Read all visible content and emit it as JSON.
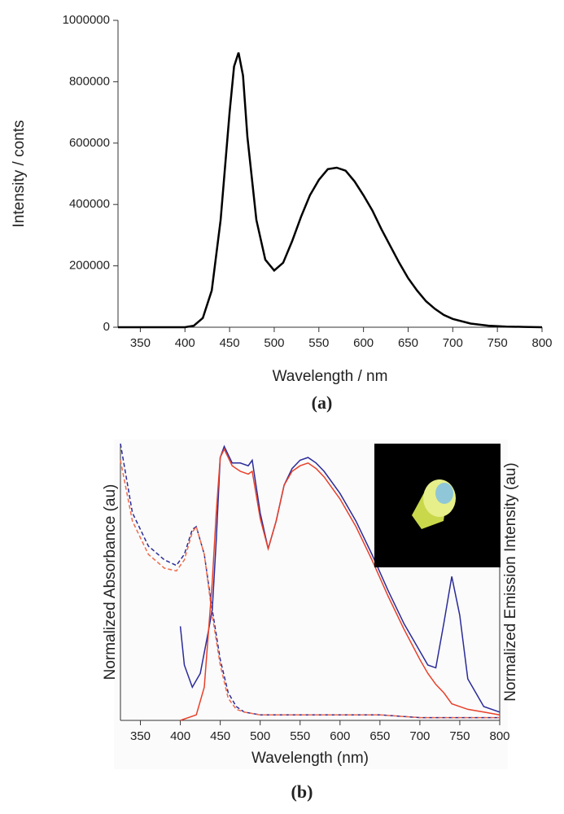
{
  "chart_data": [
    {
      "type": "line",
      "xlabel": "Wavelength / nm",
      "ylabel": "Intensity / conts",
      "caption": "(a)",
      "color": "#000000",
      "x": [
        325,
        350,
        375,
        400,
        410,
        420,
        430,
        440,
        450,
        455,
        460,
        465,
        470,
        480,
        490,
        500,
        510,
        520,
        530,
        540,
        550,
        560,
        570,
        580,
        590,
        600,
        610,
        620,
        630,
        640,
        650,
        660,
        670,
        680,
        690,
        700,
        720,
        740,
        760,
        780,
        800
      ],
      "values": [
        0,
        0,
        0,
        0,
        5000,
        30000,
        120000,
        350000,
        700000,
        850000,
        895000,
        820000,
        620000,
        350000,
        220000,
        185000,
        210000,
        280000,
        360000,
        430000,
        480000,
        515000,
        520000,
        510000,
        475000,
        430000,
        380000,
        320000,
        265000,
        210000,
        160000,
        120000,
        85000,
        60000,
        40000,
        27000,
        12000,
        5000,
        2000,
        1000,
        0
      ],
      "xlim": [
        325,
        800
      ],
      "xticks": [
        350,
        400,
        450,
        500,
        550,
        600,
        650,
        700,
        750,
        800
      ],
      "ylim": [
        0,
        1000000
      ],
      "yticks": [
        0,
        200000,
        400000,
        600000,
        800000,
        1000000
      ]
    },
    {
      "type": "line",
      "xlabel": "Wavelength (nm)",
      "ylabel": "Normalized Absorbance (au)",
      "y2label": "Normalized Emission Intensity (au)",
      "caption": "(b)",
      "xlim": [
        325,
        800
      ],
      "xticks": [
        350,
        400,
        450,
        500,
        550,
        600,
        650,
        700,
        750,
        800
      ],
      "ylim": [
        0,
        1
      ],
      "y2lim": [
        0,
        1
      ],
      "series": [
        {
          "color": "#2b2b9a",
          "dashed": true,
          "x": [
            325,
            340,
            360,
            380,
            395,
            405,
            415,
            420,
            430,
            440,
            450,
            460,
            470,
            480,
            500,
            550,
            600,
            650,
            700,
            750,
            800
          ],
          "values": [
            1.0,
            0.75,
            0.63,
            0.58,
            0.56,
            0.6,
            0.69,
            0.7,
            0.6,
            0.4,
            0.22,
            0.1,
            0.05,
            0.03,
            0.02,
            0.02,
            0.02,
            0.02,
            0.01,
            0.01,
            0.01
          ]
        },
        {
          "color": "#f06a4a",
          "dashed": true,
          "x": [
            325,
            340,
            360,
            380,
            395,
            405,
            415,
            420,
            430,
            440,
            450,
            460,
            470,
            480,
            500,
            550,
            600,
            650,
            700,
            750,
            800
          ],
          "values": [
            0.94,
            0.72,
            0.6,
            0.55,
            0.54,
            0.58,
            0.68,
            0.7,
            0.6,
            0.38,
            0.2,
            0.08,
            0.04,
            0.03,
            0.02,
            0.02,
            0.02,
            0.02,
            0.01,
            0.01,
            0.01
          ]
        },
        {
          "color": "#2b2b9a",
          "axis": "y2",
          "x": [
            400,
            405,
            415,
            425,
            435,
            440,
            445,
            450,
            455,
            465,
            475,
            485,
            490,
            500,
            510,
            520,
            530,
            540,
            550,
            560,
            570,
            580,
            600,
            620,
            640,
            660,
            680,
            700,
            710,
            720,
            730,
            740,
            750,
            760,
            780,
            800
          ],
          "values": [
            0.34,
            0.2,
            0.12,
            0.17,
            0.32,
            0.4,
            0.65,
            0.95,
            0.99,
            0.93,
            0.93,
            0.92,
            0.94,
            0.75,
            0.62,
            0.72,
            0.85,
            0.91,
            0.94,
            0.95,
            0.93,
            0.9,
            0.82,
            0.72,
            0.6,
            0.47,
            0.35,
            0.25,
            0.2,
            0.19,
            0.35,
            0.52,
            0.38,
            0.15,
            0.05,
            0.03
          ]
        },
        {
          "color": "#e8402a",
          "axis": "y2",
          "x": [
            400,
            420,
            430,
            440,
            445,
            450,
            455,
            465,
            475,
            485,
            490,
            500,
            510,
            520,
            530,
            540,
            550,
            560,
            570,
            580,
            600,
            620,
            640,
            660,
            680,
            700,
            710,
            720,
            730,
            740,
            760,
            780,
            800
          ],
          "values": [
            0.0,
            0.02,
            0.12,
            0.5,
            0.75,
            0.95,
            0.98,
            0.92,
            0.9,
            0.89,
            0.9,
            0.73,
            0.62,
            0.72,
            0.85,
            0.9,
            0.92,
            0.93,
            0.91,
            0.88,
            0.8,
            0.7,
            0.58,
            0.45,
            0.33,
            0.22,
            0.17,
            0.13,
            0.1,
            0.06,
            0.04,
            0.03,
            0.02
          ]
        }
      ]
    }
  ]
}
